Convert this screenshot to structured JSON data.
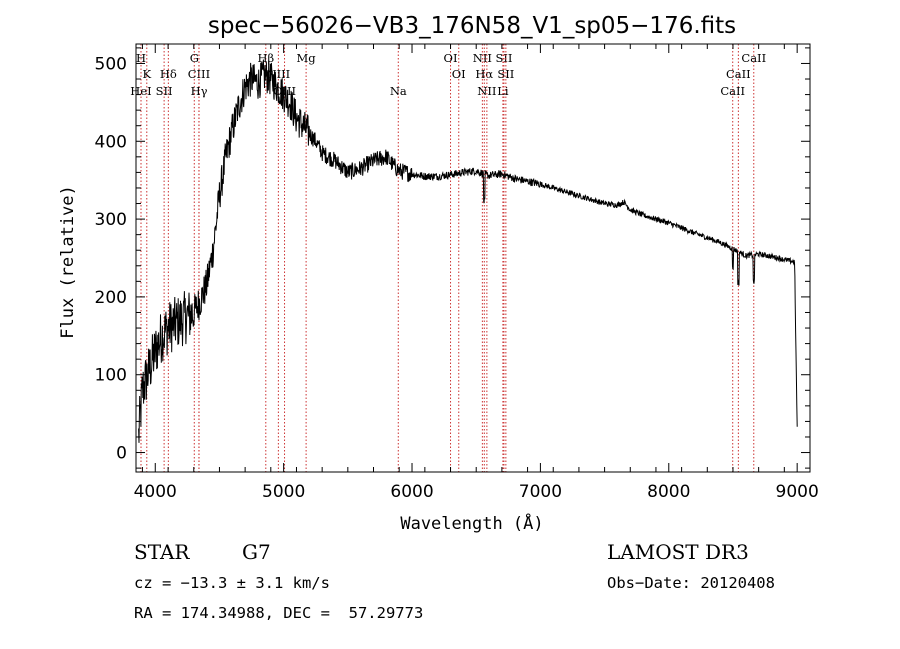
{
  "chart_data": {
    "type": "line",
    "title": "spec−56026−VB3_176N58_V1_sp05−176.fits",
    "xlabel": "Wavelength (Å)",
    "ylabel": "Flux (relative)",
    "xlim": [
      3850,
      9100
    ],
    "ylim": [
      -25,
      525
    ],
    "x_ticks": [
      4000,
      5000,
      6000,
      7000,
      8000,
      9000
    ],
    "y_ticks": [
      0,
      100,
      200,
      300,
      400,
      500
    ],
    "x_tick_labels": [
      "4000",
      "5000",
      "6000",
      "7000",
      "8000",
      "9000"
    ],
    "y_tick_labels": [
      "0",
      "100",
      "200",
      "300",
      "400",
      "500"
    ],
    "spectrum_anchors": {
      "x": [
        3870,
        3900,
        3950,
        4000,
        4050,
        4100,
        4150,
        4200,
        4250,
        4300,
        4350,
        4400,
        4450,
        4500,
        4550,
        4600,
        4650,
        4700,
        4750,
        4800,
        4850,
        4900,
        4950,
        5000,
        5050,
        5100,
        5150,
        5200,
        5250,
        5300,
        5400,
        5500,
        5600,
        5700,
        5800,
        5850,
        5900,
        6000,
        6100,
        6200,
        6300,
        6400,
        6500,
        6560,
        6600,
        6700,
        6800,
        7000,
        7200,
        7400,
        7500,
        7600,
        7650,
        7700,
        7800,
        8000,
        8200,
        8400,
        8500,
        8600,
        8700,
        8800,
        8900,
        8980,
        9000
      ],
      "y": [
        20,
        80,
        105,
        130,
        150,
        160,
        165,
        170,
        175,
        180,
        195,
        215,
        260,
        330,
        380,
        415,
        445,
        470,
        480,
        475,
        485,
        480,
        470,
        460,
        450,
        430,
        420,
        410,
        400,
        385,
        375,
        360,
        365,
        375,
        380,
        370,
        362,
        358,
        355,
        355,
        357,
        360,
        362,
        358,
        356,
        358,
        352,
        345,
        335,
        325,
        320,
        318,
        322,
        312,
        305,
        295,
        282,
        270,
        262,
        253,
        255,
        252,
        248,
        245,
        30
      ],
      "noise_amplitude_note": "rough"
    },
    "spectral_lines": [
      {
        "label": "H",
        "x": 3889,
        "row": 1
      },
      {
        "label": "K",
        "x": 3934,
        "row": 2
      },
      {
        "label": "HeI",
        "x": 3889,
        "row": 3
      },
      {
        "label": "SII",
        "x": 4069,
        "row": 3
      },
      {
        "label": "Hδ",
        "x": 4102,
        "row": 2
      },
      {
        "label": "G",
        "x": 4304,
        "row": 1
      },
      {
        "label": "CIII",
        "x": 4340,
        "row": 2
      },
      {
        "label": "Hγ",
        "x": 4341,
        "row": 3
      },
      {
        "label": "Hβ",
        "x": 4861,
        "row": 1
      },
      {
        "label": "NIII",
        "x": 4959,
        "row": 2
      },
      {
        "label": "OIII",
        "x": 5007,
        "row": 3
      },
      {
        "label": "Mg",
        "x": 5175,
        "row": 1
      },
      {
        "label": "Na",
        "x": 5893,
        "row": 3
      },
      {
        "label": "OI",
        "x": 6300,
        "row": 1
      },
      {
        "label": "OI",
        "x": 6364,
        "row": 2
      },
      {
        "label": "NII",
        "x": 6548,
        "row": 1
      },
      {
        "label": "Hα",
        "x": 6563,
        "row": 2
      },
      {
        "label": "NII",
        "x": 6583,
        "row": 3
      },
      {
        "label": "SII",
        "x": 6716,
        "row": 1
      },
      {
        "label": "SII",
        "x": 6731,
        "row": 2
      },
      {
        "label": "Li",
        "x": 6708,
        "row": 3
      },
      {
        "label": "CaII",
        "x": 8662,
        "row": 1
      },
      {
        "label": "CaII",
        "x": 8542,
        "row": 2
      },
      {
        "label": "CaII",
        "x": 8498,
        "row": 3
      }
    ],
    "line_color": "#cc3333",
    "grid": false
  },
  "info": {
    "class": "STAR",
    "subclass": "G7",
    "survey": "LAMOST DR3",
    "cz": "cz = −13.3 ± 3.1 km/s",
    "obs_date": "Obs−Date: 20120408",
    "coords": "RA = 174.34988, DEC =  57.29773"
  }
}
